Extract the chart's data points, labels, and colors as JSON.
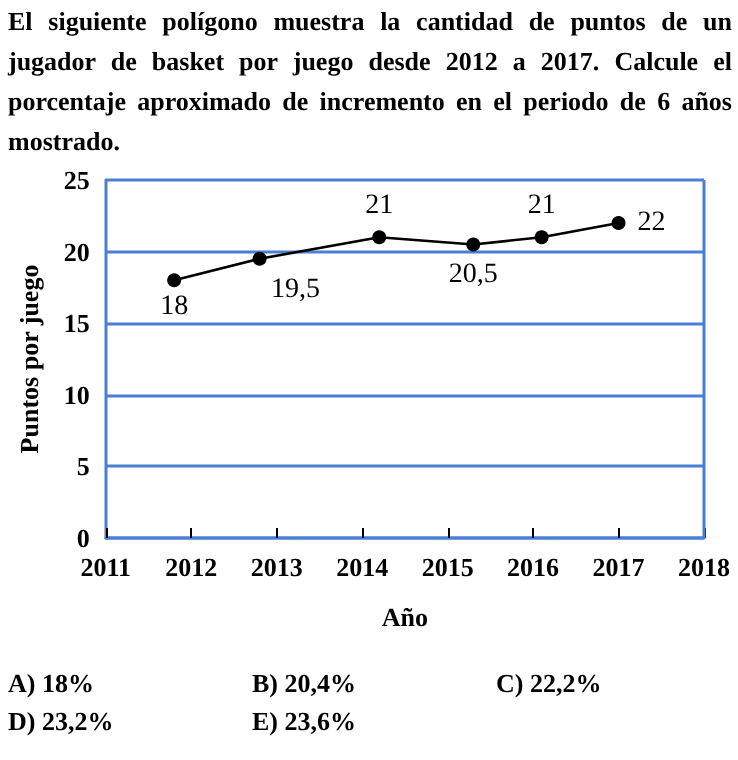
{
  "chart_data": {
    "type": "line",
    "title": "El siguiente polígono muestra la cantidad de puntos de un jugador de basket por juego desde 2012 a 2017. Calcule el porcentaje aproximado de incremento en el periodo de 6 años mostrado.",
    "xlabel": "Año",
    "ylabel": "Puntos por juego",
    "x": [
      2011.8,
      2012.8,
      2014.2,
      2015.3,
      2016.1,
      2017.0
    ],
    "series": [
      {
        "color": "#000000",
        "values": [
          18,
          19.5,
          21,
          20.5,
          21,
          22
        ],
        "value_labels": [
          "18",
          "19,5",
          "21",
          "20,5",
          "21",
          "22"
        ]
      }
    ],
    "xlim": [
      2011,
      2018
    ],
    "xticks": [
      2011,
      2012,
      2013,
      2014,
      2015,
      2016,
      2017,
      2018
    ],
    "ylim": [
      0,
      25
    ],
    "yticks": [
      0,
      5,
      10,
      15,
      20,
      25
    ],
    "grid": "y",
    "marker": "circle",
    "line_style": "solid",
    "annotations": [
      "A) 18%",
      "B) 20,4%",
      "C) 22,2%",
      "D) 23,2%",
      "E) 23,6%"
    ]
  }
}
